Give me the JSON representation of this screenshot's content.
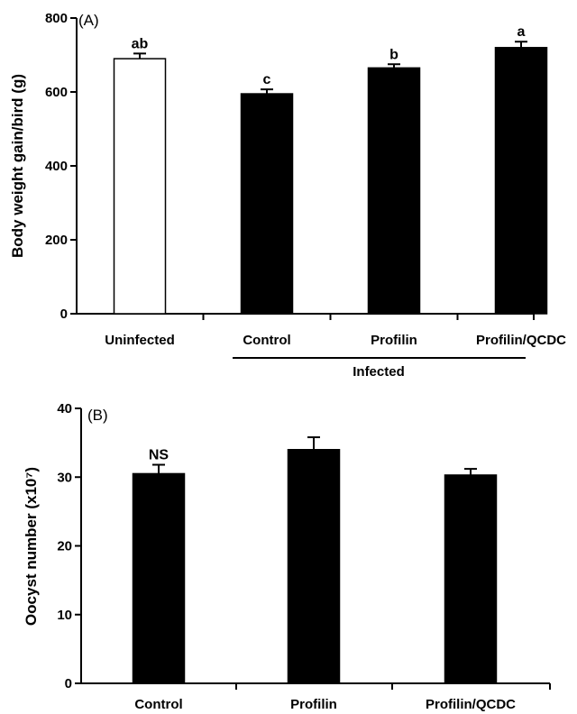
{
  "chart_data": [
    {
      "panel": "(A)",
      "type": "bar",
      "ylabel": "Body weight gain/bird (g)",
      "ylim": [
        0,
        800
      ],
      "yticks": [
        "0",
        "200",
        "400",
        "600",
        "800"
      ],
      "categories": [
        "Uninfected",
        "Control",
        "Profilin",
        "Profilin/QCDC"
      ],
      "values": [
        690,
        595,
        665,
        720
      ],
      "errors": [
        14,
        12,
        10,
        16
      ],
      "fill_colors": [
        "#ffffff",
        "#000000",
        "#000000",
        "#000000"
      ],
      "significance": [
        "ab",
        "c",
        "b",
        "a"
      ],
      "group_label": "Infected"
    },
    {
      "panel": "(B)",
      "type": "bar",
      "ylabel": "Oocyst number (x10⁷)",
      "ylim": [
        0,
        40
      ],
      "yticks": [
        "0",
        "10",
        "20",
        "30",
        "40"
      ],
      "categories": [
        "Control",
        "Profilin",
        "Profilin/QCDC"
      ],
      "values": [
        30.5,
        34,
        30.3
      ],
      "errors": [
        1.3,
        1.8,
        0.9
      ],
      "fill_colors": [
        "#000000",
        "#000000",
        "#000000"
      ],
      "significance": [
        "NS"
      ]
    }
  ]
}
